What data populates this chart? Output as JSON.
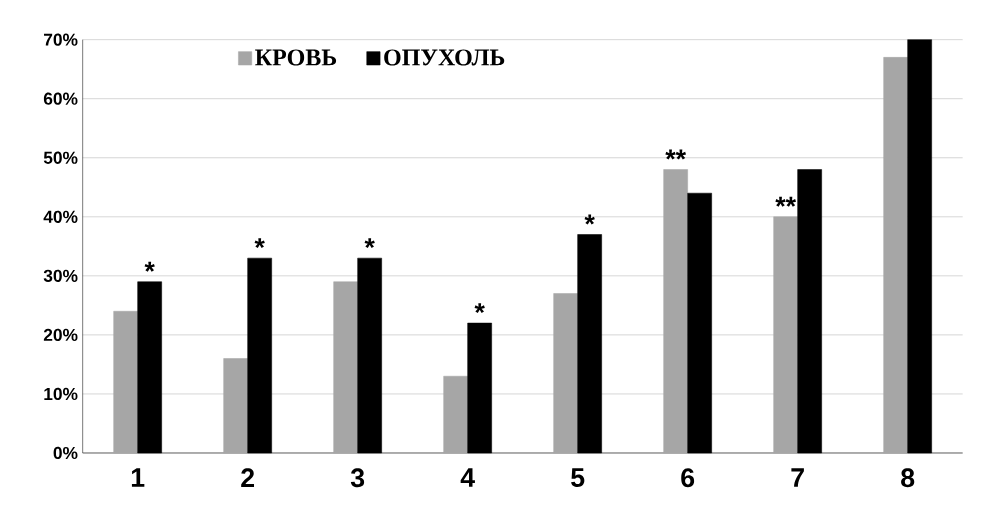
{
  "chart_data": {
    "type": "bar",
    "categories": [
      "1",
      "2",
      "3",
      "4",
      "5",
      "6",
      "7",
      "8"
    ],
    "series": [
      {
        "name": "КРОВЬ",
        "color": "#a6a6a6",
        "values": [
          24,
          16,
          29,
          13,
          27,
          48,
          40,
          67
        ]
      },
      {
        "name": "ОПУХОЛЬ",
        "color": "#000000",
        "values": [
          29,
          33,
          33,
          22,
          37,
          44,
          48,
          70
        ]
      }
    ],
    "ylim": [
      0,
      70
    ],
    "yticks": [
      {
        "value": 0,
        "label": "0%"
      },
      {
        "value": 10,
        "label": "10%"
      },
      {
        "value": 20,
        "label": "20%"
      },
      {
        "value": 30,
        "label": "30%"
      },
      {
        "value": 40,
        "label": "40%"
      },
      {
        "value": 50,
        "label": "50%"
      },
      {
        "value": 60,
        "label": "60%"
      },
      {
        "value": 70,
        "label": "70%"
      }
    ],
    "grid": "y",
    "legend": "top",
    "annotations": [
      {
        "text": "*",
        "x": "1",
        "y": 29
      },
      {
        "text": "*",
        "x": "2",
        "y": 33
      },
      {
        "text": "*",
        "x": "3",
        "y": 33
      },
      {
        "text": "*",
        "x": "4",
        "y": 22
      },
      {
        "text": "*",
        "x": "5",
        "y": 37
      },
      {
        "text": "**",
        "x": "6",
        "y": 48
      },
      {
        "text": "**",
        "x": "7",
        "y": 40
      }
    ]
  }
}
